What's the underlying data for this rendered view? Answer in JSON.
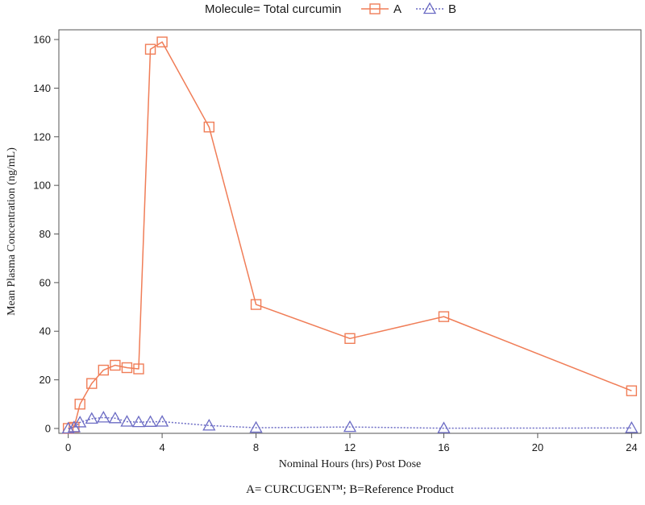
{
  "chart_data": {
    "type": "line",
    "legend_title": "Molecule= Total curcumin",
    "legend_position": "top",
    "xlabel": "Nominal Hours (hrs) Post Dose",
    "ylabel": "Mean Plasma Concentration (ng/mL)",
    "caption": "A= CURCUGEN™; B=Reference Product",
    "xlim": [
      -0.4,
      24.4
    ],
    "ylim": [
      -2,
      164
    ],
    "xticks": [
      0,
      4,
      8,
      12,
      16,
      20,
      24
    ],
    "yticks": [
      0,
      20,
      40,
      60,
      80,
      100,
      120,
      140,
      160
    ],
    "grid": false,
    "series": [
      {
        "name": "A",
        "color": "#f07d57",
        "marker": "square",
        "line_style": "solid",
        "x": [
          0,
          0.25,
          0.5,
          1,
          1.5,
          2,
          2.5,
          3,
          3.5,
          4,
          6,
          8,
          12,
          16,
          24
        ],
        "y": [
          0,
          0.5,
          10,
          18.5,
          24,
          26,
          25,
          24.5,
          156,
          159,
          124,
          51,
          37,
          46,
          15.5
        ]
      },
      {
        "name": "B",
        "color": "#6b6bc4",
        "marker": "triangle",
        "line_style": "dotted",
        "x": [
          0,
          0.25,
          0.5,
          1,
          1.5,
          2,
          2.5,
          3,
          3.5,
          4,
          6,
          8,
          12,
          16,
          24
        ],
        "y": [
          0,
          0.5,
          2.5,
          4,
          4.5,
          4.2,
          2.8,
          2.6,
          2.7,
          2.8,
          1.2,
          0.3,
          0.6,
          0.1,
          0.2
        ]
      }
    ]
  }
}
